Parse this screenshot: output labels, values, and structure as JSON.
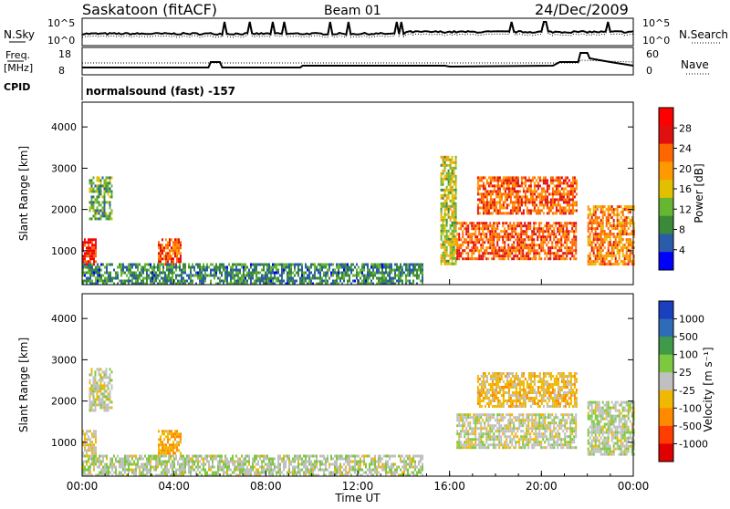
{
  "header": {
    "station": "Saskatoon (fitACF)",
    "beam": "Beam 01",
    "date": "24/Dec/2009"
  },
  "panels": {
    "noise_left_label": "N.Sky",
    "noise_left_ticks": [
      "10^5",
      "10^0"
    ],
    "noise_right_ticks": [
      "10^5",
      "10^0"
    ],
    "noise_right_label": "N.Search",
    "freq_label_1": "Freq.",
    "freq_label_2": "[MHz]",
    "freq_ticks": [
      "18",
      "8"
    ],
    "nave_ticks": [
      "60",
      "0"
    ],
    "nave_label": "Nave",
    "cpid_label": "CPID",
    "cpid_text": "normalsound (fast) -157"
  },
  "power_panel": {
    "ylabel": "Slant Range [km]",
    "yticks": [
      "4000",
      "3000",
      "2000",
      "1000"
    ],
    "colorbar_label": "Power [dB]",
    "colorbar_ticks": [
      "28",
      "24",
      "20",
      "16",
      "12",
      "8",
      "4"
    ],
    "colors": [
      "#0000ff",
      "#2a5caa",
      "#3a8a3a",
      "#66b533",
      "#e0c000",
      "#ff9900",
      "#ff6600",
      "#e01010",
      "#ff0000"
    ]
  },
  "velocity_panel": {
    "ylabel": "Slant Range [km]",
    "yticks": [
      "4000",
      "3000",
      "2000",
      "1000"
    ],
    "colorbar_label": "Velocity [m s⁻¹]",
    "colorbar_ticks": [
      "1000",
      "500",
      "100",
      "25",
      "-25",
      "-100",
      "-500",
      "-1000"
    ],
    "colors": [
      "#1a3fbf",
      "#2e6bb8",
      "#3f9a4a",
      "#7cc93f",
      "#c0c0c0",
      "#f0b800",
      "#ff8a00",
      "#ff3d00",
      "#e00000"
    ]
  },
  "xaxis": {
    "ticks": [
      "00:00",
      "04:00",
      "08:00",
      "12:00",
      "16:00",
      "20:00",
      "00:00"
    ],
    "label": "Time UT"
  },
  "chart_data": {
    "type": "heatmap",
    "title": "Saskatoon (fitACF)   Beam 01   24/Dec/2009",
    "xlabel": "Time UT",
    "ylabel": "Slant Range [km]",
    "xlim_hours": [
      0,
      24
    ],
    "ylim": [
      180,
      4600
    ],
    "grid": false,
    "panels": [
      {
        "name": "Power [dB]",
        "zlim": [
          0,
          30
        ],
        "echo_regions": [
          {
            "t0": 0.0,
            "t1": 0.6,
            "r0": 700,
            "r1": 1300,
            "value": 26
          },
          {
            "t0": 0.3,
            "t1": 1.3,
            "r0": 1800,
            "r1": 2800,
            "value": 10
          },
          {
            "t0": 3.3,
            "t1": 4.3,
            "r0": 700,
            "r1": 1300,
            "value": 22
          },
          {
            "t0": 0.0,
            "t1": 14.8,
            "r0": 200,
            "r1": 700,
            "value": 8
          },
          {
            "t0": 15.6,
            "t1": 16.3,
            "r0": 700,
            "r1": 3300,
            "value": 14
          },
          {
            "t0": 16.3,
            "t1": 21.5,
            "r0": 800,
            "r1": 1700,
            "value": 22
          },
          {
            "t0": 17.2,
            "t1": 21.5,
            "r0": 1900,
            "r1": 2800,
            "value": 22
          },
          {
            "t0": 22.0,
            "t1": 24.0,
            "r0": 700,
            "r1": 2100,
            "value": 20
          }
        ]
      },
      {
        "name": "Velocity [m s-1]",
        "zlim": [
          -1000,
          1000
        ],
        "echo_regions": [
          {
            "t0": 0.0,
            "t1": 0.6,
            "r0": 700,
            "r1": 1300,
            "value": -100
          },
          {
            "t0": 0.3,
            "t1": 1.3,
            "r0": 1800,
            "r1": 2800,
            "value": 0
          },
          {
            "t0": 3.3,
            "t1": 4.3,
            "r0": 700,
            "r1": 1300,
            "value": -300
          },
          {
            "t0": 0.0,
            "t1": 14.8,
            "r0": 200,
            "r1": 700,
            "value": 50
          },
          {
            "t0": 16.3,
            "t1": 21.5,
            "r0": 900,
            "r1": 1700,
            "value": 0
          },
          {
            "t0": 17.2,
            "t1": 21.5,
            "r0": 1900,
            "r1": 2700,
            "value": -200
          },
          {
            "t0": 22.0,
            "t1": 24.0,
            "r0": 700,
            "r1": 2000,
            "value": 50
          }
        ]
      }
    ]
  }
}
